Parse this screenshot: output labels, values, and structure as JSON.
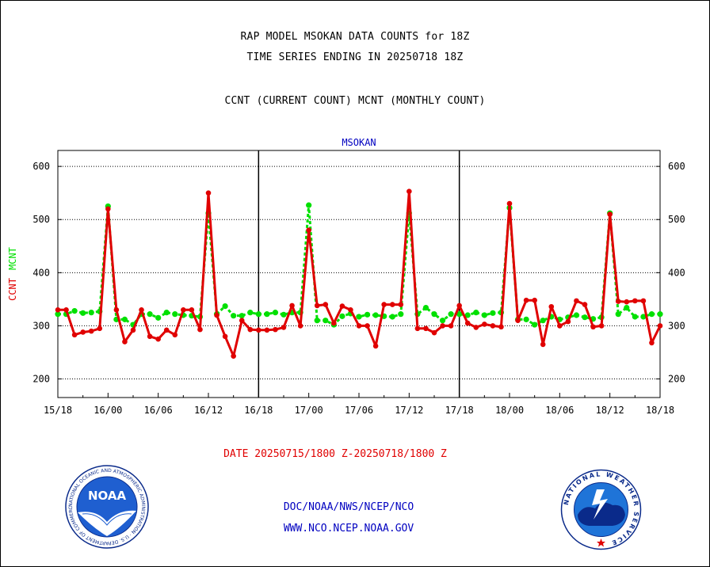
{
  "titles": {
    "line1": "RAP MODEL MSOKAN DATA COUNTS for 18Z",
    "line2": "TIME SERIES ENDING IN 20250718 18Z",
    "line3": "CCNT (CURRENT COUNT) MCNT (MONTHLY COUNT)"
  },
  "date_range": "DATE 20250715/1800 Z-20250718/1800 Z",
  "credits": {
    "line1": "DOC/NOAA/NWS/NCEP/NCO",
    "line2": "WWW.NCO.NCEP.NOAA.GOV"
  },
  "logos": {
    "left": {
      "ring_text": "NATIONAL OCEANIC AND ATMOSPHERIC ADMINISTRATION · U.S. DEPARTMENT OF COMMERCE",
      "center": "NOAA"
    },
    "right": {
      "ring_text": "NATIONAL WEATHER SERVICE"
    }
  },
  "colors": {
    "ccnt": "#e00000",
    "mcnt": "#00e000",
    "plot_title": "#0000c0",
    "credits": "#0000c0"
  },
  "chart_data": {
    "type": "line",
    "title": "MSOKAN",
    "ylabel_parts": [
      {
        "text": "CCNT",
        "color": "#e00000"
      },
      {
        "text": "MCNT",
        "color": "#00e000"
      }
    ],
    "ylim": [
      165,
      630
    ],
    "yticks": [
      200,
      300,
      400,
      500,
      600
    ],
    "xlim": [
      0,
      72
    ],
    "xticks": [
      {
        "x": 0,
        "label": "15/18"
      },
      {
        "x": 6,
        "label": "16/00"
      },
      {
        "x": 12,
        "label": "16/06"
      },
      {
        "x": 18,
        "label": "16/12"
      },
      {
        "x": 24,
        "label": "16/18"
      },
      {
        "x": 30,
        "label": "17/00"
      },
      {
        "x": 36,
        "label": "17/06"
      },
      {
        "x": 42,
        "label": "17/12"
      },
      {
        "x": 48,
        "label": "17/18"
      },
      {
        "x": 54,
        "label": "18/00"
      },
      {
        "x": 60,
        "label": "18/06"
      },
      {
        "x": 66,
        "label": "18/12"
      },
      {
        "x": 72,
        "label": "18/18"
      }
    ],
    "day_dividers": [
      24,
      48
    ],
    "grid": true,
    "series": [
      {
        "name": "CCNT",
        "values": [
          330,
          330,
          283,
          288,
          290,
          295,
          520,
          330,
          270,
          292,
          330,
          280,
          275,
          292,
          283,
          330,
          330,
          293,
          550,
          320,
          280,
          243,
          310,
          293,
          292,
          292,
          293,
          297,
          338,
          300,
          480,
          338,
          340,
          305,
          337,
          330,
          300,
          300,
          262,
          340,
          340,
          340,
          553,
          295,
          295,
          287,
          300,
          300,
          338,
          305,
          297,
          303,
          300,
          298,
          530,
          310,
          348,
          348,
          265,
          336,
          300,
          308,
          347,
          340,
          298,
          300,
          510,
          346,
          345,
          347,
          347,
          268,
          300
        ],
        "note_x_spacing": "hourly, x = 0..72"
      },
      {
        "name": "MCNT",
        "values": [
          322,
          322,
          328,
          324,
          325,
          327,
          525,
          312,
          312,
          302,
          322,
          322,
          315,
          325,
          322,
          320,
          319,
          317,
          512,
          322,
          337,
          319,
          319,
          325,
          322,
          322,
          325,
          321,
          325,
          325,
          527,
          310,
          310,
          302,
          318,
          323,
          317,
          321,
          320,
          318,
          317,
          322,
          512,
          322,
          334,
          322,
          310,
          322,
          322,
          320,
          325,
          320,
          324,
          325,
          522,
          312,
          312,
          302,
          310,
          317,
          312,
          316,
          320,
          316,
          313,
          316,
          512,
          322,
          334,
          317,
          317,
          322,
          322
        ]
      }
    ]
  }
}
